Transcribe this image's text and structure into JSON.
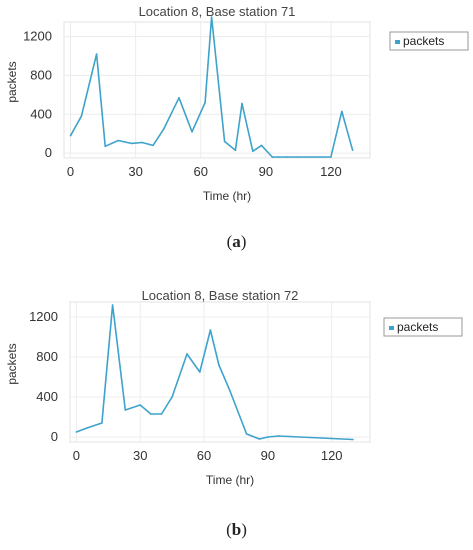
{
  "chart_data": [
    {
      "type": "line",
      "title": "Location 8, Base station 71",
      "xlabel": "Time (hr)",
      "ylabel": "packets",
      "legend": {
        "placement": "top-right",
        "entries": [
          "packets"
        ]
      },
      "xticks": [
        "0",
        "30",
        "60",
        "90",
        "120"
      ],
      "yticks": [
        "0",
        "400",
        "800",
        "1200"
      ],
      "xlim": [
        -3,
        138
      ],
      "ylim": [
        -50,
        1350
      ],
      "grid": true,
      "color": "#3ea3cc",
      "series": [
        {
          "name": "packets",
          "x": [
            0,
            5,
            12,
            16,
            22,
            28,
            33,
            38,
            43,
            50,
            56,
            62,
            65,
            71,
            76,
            79,
            84,
            88,
            93,
            96,
            100,
            105,
            110,
            115,
            120,
            125,
            130
          ],
          "y": [
            180,
            380,
            1020,
            70,
            130,
            100,
            110,
            80,
            250,
            570,
            220,
            520,
            1400,
            120,
            30,
            510,
            20,
            80,
            -40,
            -40,
            -40,
            -40,
            -40,
            -40,
            -40,
            430,
            30
          ]
        }
      ],
      "caption_label": "a"
    },
    {
      "type": "line",
      "title": "Location 8, Base station 72",
      "xlabel": "Time (hr)",
      "ylabel": "packets",
      "legend": {
        "placement": "top-right",
        "entries": [
          "packets"
        ]
      },
      "xticks": [
        "0",
        "30",
        "60",
        "90",
        "120"
      ],
      "yticks": [
        "0",
        "400",
        "800",
        "1200"
      ],
      "xlim": [
        -3,
        138
      ],
      "ylim": [
        -50,
        1350
      ],
      "grid": true,
      "color": "#3ea3cc",
      "series": [
        {
          "name": "packets",
          "x": [
            0,
            5,
            12,
            17,
            23,
            30,
            35,
            40,
            45,
            52,
            58,
            63,
            67,
            72,
            80,
            86,
            90,
            95,
            100,
            110,
            120,
            130
          ],
          "y": [
            50,
            90,
            140,
            1320,
            270,
            320,
            230,
            230,
            400,
            830,
            650,
            1070,
            720,
            470,
            30,
            -20,
            0,
            10,
            5,
            -5,
            -15,
            -25
          ]
        }
      ],
      "caption_label": "b"
    }
  ],
  "captions": {
    "a": "a",
    "b": "b"
  }
}
